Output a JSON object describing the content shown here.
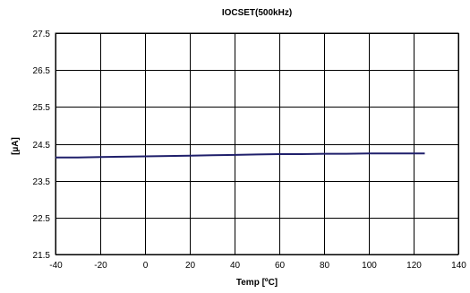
{
  "chart_data": {
    "type": "line",
    "title": "IOCSET(500kHz)",
    "xlabel": "Temp [ºC]",
    "ylabel": "[µA]",
    "xlim": [
      -40,
      140
    ],
    "ylim": [
      21.5,
      27.5
    ],
    "x_ticks": [
      -40,
      -20,
      0,
      20,
      40,
      60,
      80,
      100,
      120,
      140
    ],
    "y_ticks": [
      "21.5",
      "22.5",
      "23.5",
      "24.5",
      "25.5",
      "26.5",
      "27.5"
    ],
    "grid": true,
    "legend": "none",
    "series": [
      {
        "color": "#1f1f6b",
        "x": [
          -40,
          -30,
          -20,
          -10,
          0,
          10,
          20,
          30,
          40,
          50,
          60,
          70,
          80,
          90,
          100,
          110,
          125
        ],
        "y": [
          24.13,
          24.13,
          24.14,
          24.15,
          24.16,
          24.17,
          24.18,
          24.19,
          24.2,
          24.21,
          24.22,
          24.22,
          24.23,
          24.23,
          24.24,
          24.24,
          24.24
        ]
      }
    ]
  }
}
